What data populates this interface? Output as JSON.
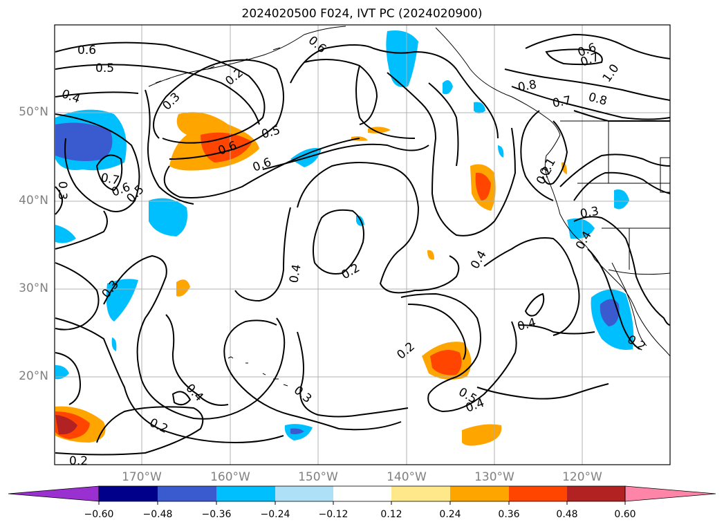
{
  "title": "2024020500 F024, IVT PC (2024020900)",
  "latitude_labels": [
    "50°N",
    "40°N",
    "30°N",
    "20°N"
  ],
  "longitude_labels": [
    "170°W",
    "160°W",
    "150°W",
    "140°W",
    "130°W",
    "120°W"
  ],
  "contour_labels": [
    "0.6",
    "0.5",
    "0.4",
    "0.3",
    "0.2",
    "0.5",
    "0.6",
    "0.6",
    "0.6",
    "0.7",
    "0.6",
    "0.5",
    "0.3",
    "0.3",
    "0.4",
    "0.2",
    "0.4",
    "0.3",
    "0.2",
    "0.4",
    "0.2",
    "0.5",
    "0.4",
    "0.2",
    "0.2",
    "0.6",
    "0.7",
    "1.0",
    "0.8",
    "0.7",
    "0.8",
    "0.3",
    "0.4",
    "0.4",
    "0.2",
    "0.1"
  ],
  "colorbar": {
    "ticks": [
      "−0.60",
      "−0.48",
      "−0.36",
      "−0.24",
      "−0.12",
      "0.12",
      "0.24",
      "0.36",
      "0.48",
      "0.60"
    ],
    "colors": [
      "#9b30d0",
      "#00008b",
      "#3a5bd0",
      "#00bfff",
      "#aee0f8",
      "#ffffff",
      "#ffe88a",
      "#ffa500",
      "#ff4500",
      "#b22222",
      "#ff85a8"
    ]
  },
  "colors": {
    "ocean": "#ffffff",
    "gridline": "#b0b0b0",
    "contour": "#000000",
    "coast": "#000000"
  }
}
